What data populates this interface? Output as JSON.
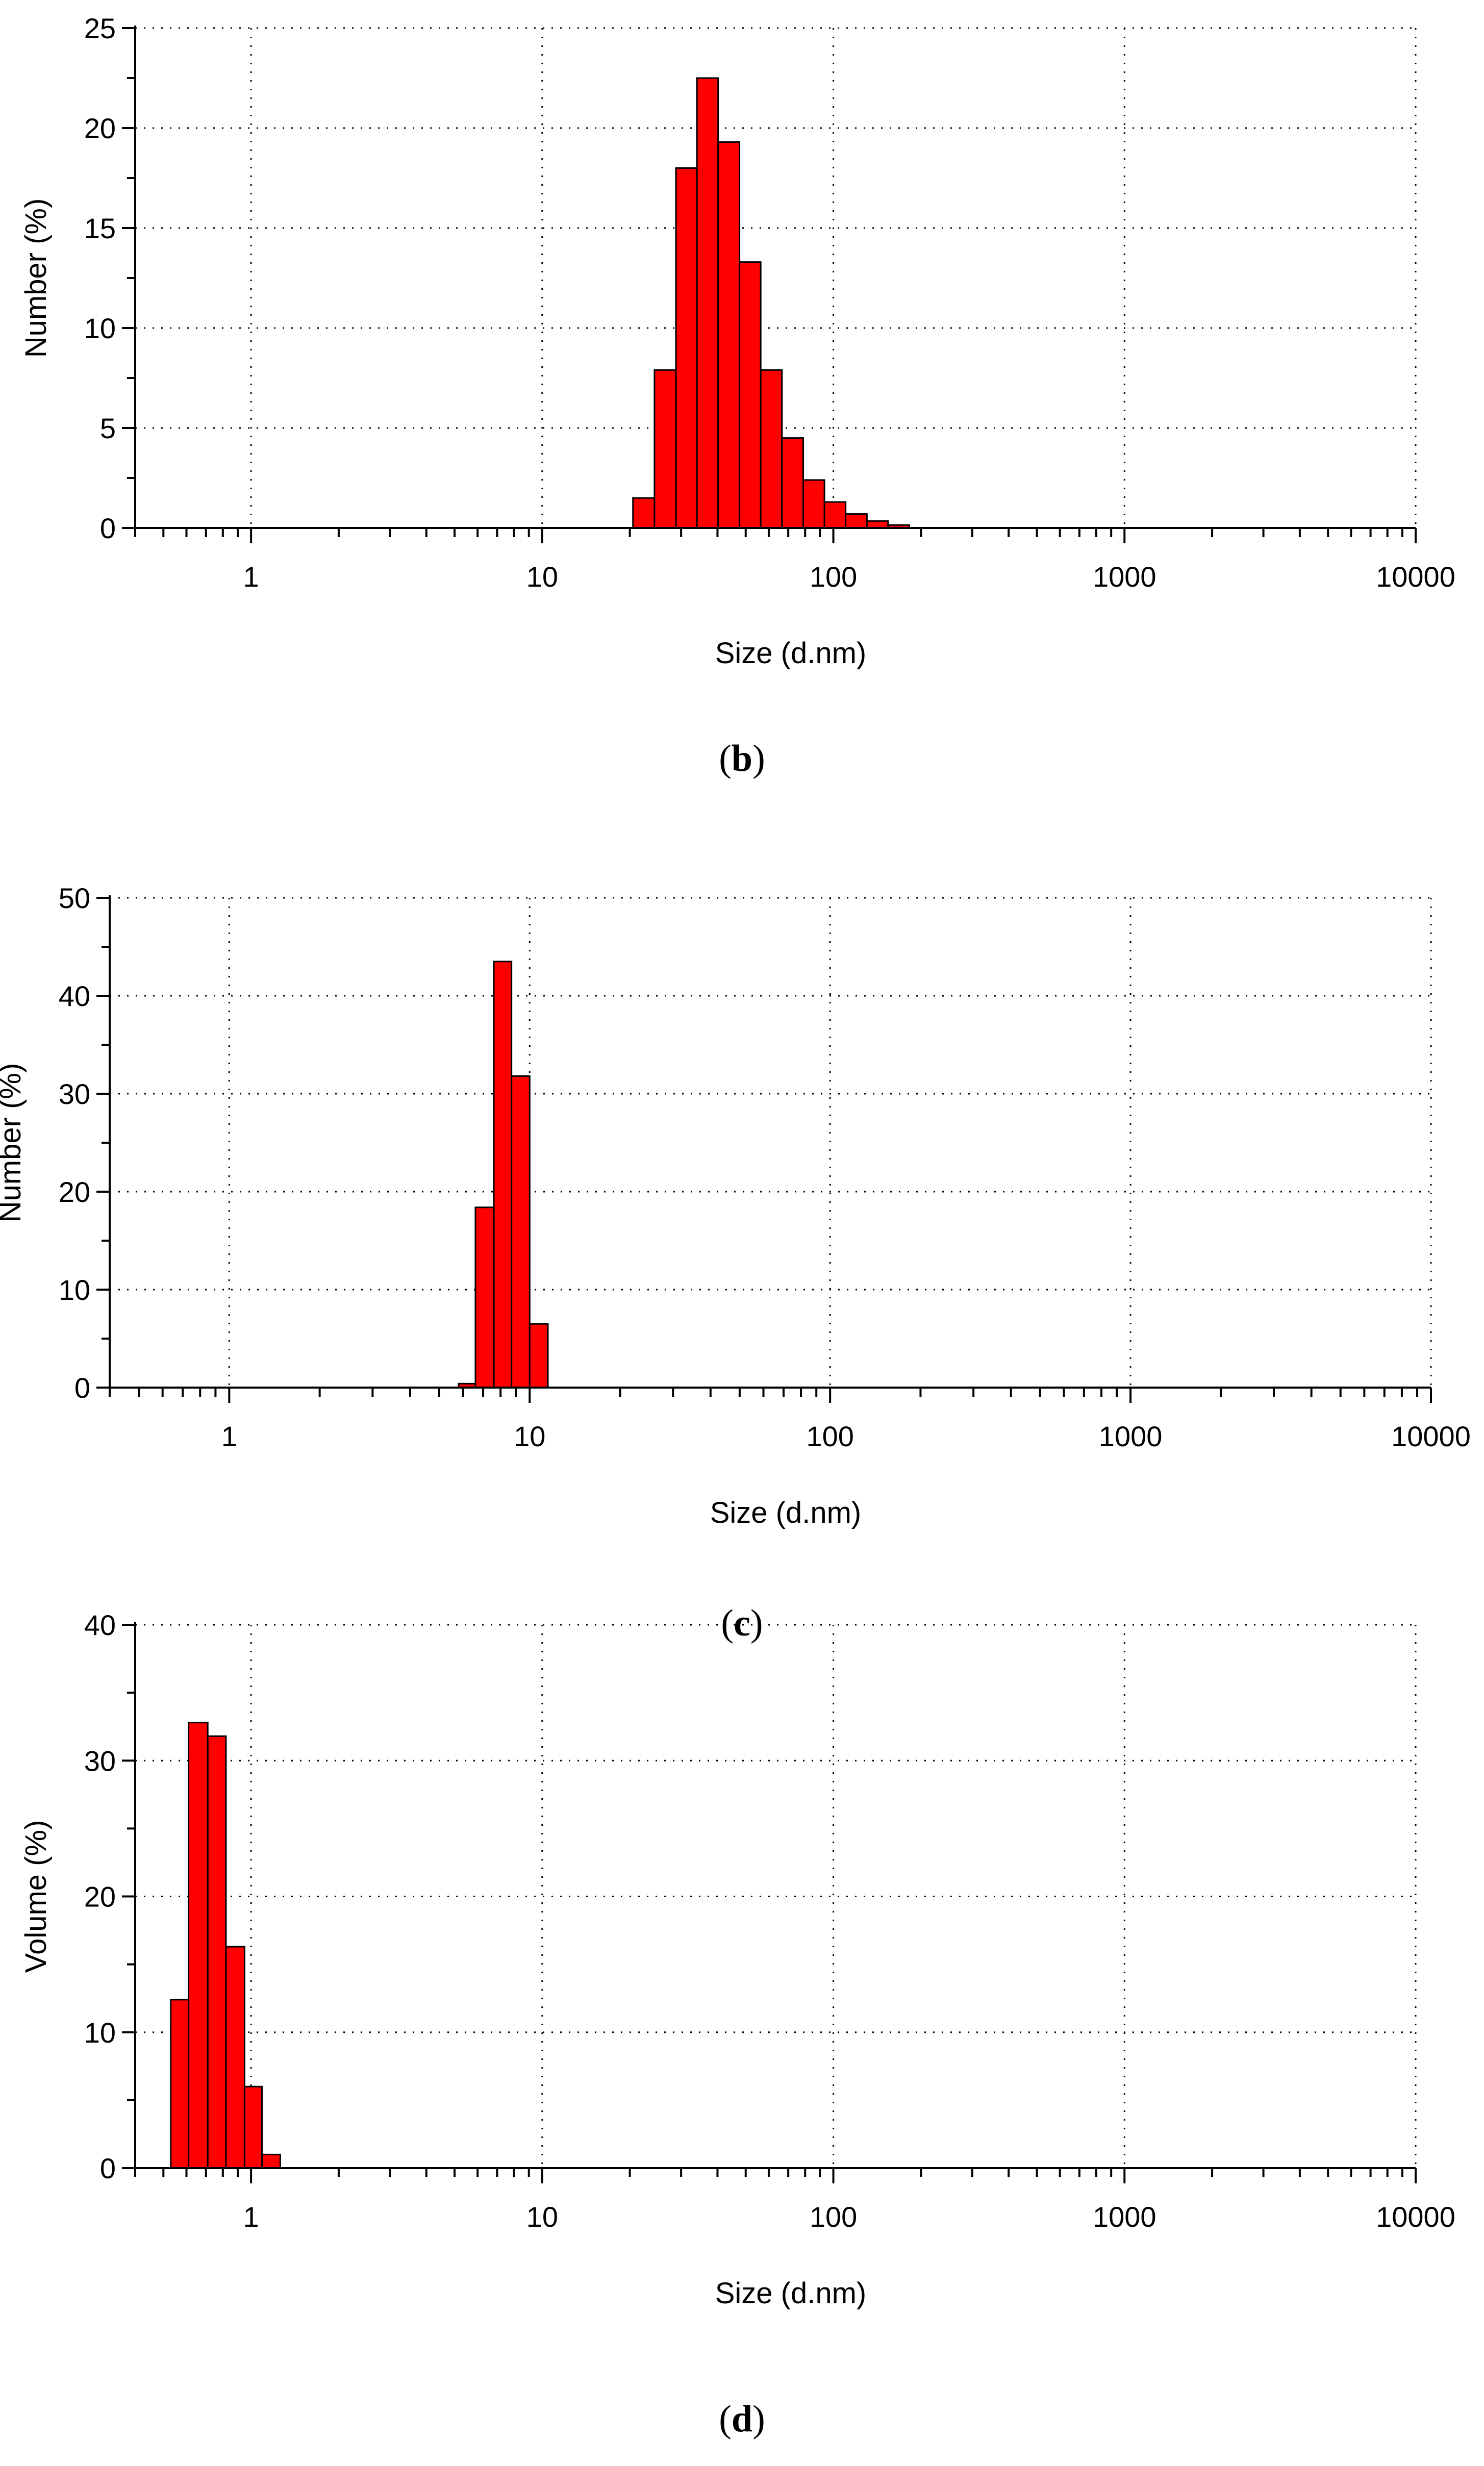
{
  "bar_color": "#ff0000",
  "chart_data": [
    {
      "type": "bar",
      "caption_letter": "b",
      "xlabel": "Size (d.nm)",
      "ylabel": "Number (%)",
      "x_scale": "log",
      "xlim": [
        0.4,
        10000
      ],
      "ylim": [
        0,
        25
      ],
      "x_ticks": [
        "1",
        "10",
        "100",
        "1000",
        "10000"
      ],
      "y_ticks": [
        "0",
        "5",
        "10",
        "15",
        "20",
        "25"
      ],
      "grid": true,
      "bins": [
        {
          "x0": 20.5,
          "x1": 24.3,
          "value": 1.5
        },
        {
          "x0": 24.3,
          "x1": 28.8,
          "value": 7.9
        },
        {
          "x0": 28.8,
          "x1": 34.0,
          "value": 18.0
        },
        {
          "x0": 34.0,
          "x1": 40.2,
          "value": 22.5
        },
        {
          "x0": 40.2,
          "x1": 47.6,
          "value": 19.3
        },
        {
          "x0": 47.6,
          "x1": 56.3,
          "value": 13.3
        },
        {
          "x0": 56.3,
          "x1": 66.6,
          "value": 7.9
        },
        {
          "x0": 66.6,
          "x1": 78.8,
          "value": 4.5
        },
        {
          "x0": 78.8,
          "x1": 93.2,
          "value": 2.4
        },
        {
          "x0": 93.2,
          "x1": 110.2,
          "value": 1.3
        },
        {
          "x0": 110.2,
          "x1": 130.4,
          "value": 0.7
        },
        {
          "x0": 130.4,
          "x1": 154.2,
          "value": 0.35
        },
        {
          "x0": 154.2,
          "x1": 182.4,
          "value": 0.15
        }
      ]
    },
    {
      "type": "bar",
      "caption_letter": "c",
      "xlabel": "Size (d.nm)",
      "ylabel": "Number (%)",
      "x_scale": "log",
      "xlim": [
        0.4,
        10000
      ],
      "ylim": [
        0,
        50
      ],
      "x_ticks": [
        "1",
        "10",
        "100",
        "1000",
        "10000"
      ],
      "y_ticks": [
        "0",
        "10",
        "20",
        "30",
        "40",
        "50"
      ],
      "grid": true,
      "bins": [
        {
          "x0": 5.8,
          "x1": 6.6,
          "value": 0.4
        },
        {
          "x0": 6.6,
          "x1": 7.6,
          "value": 18.4
        },
        {
          "x0": 7.6,
          "x1": 8.7,
          "value": 43.5
        },
        {
          "x0": 8.7,
          "x1": 10.0,
          "value": 31.8
        },
        {
          "x0": 10.0,
          "x1": 11.5,
          "value": 6.5
        }
      ]
    },
    {
      "type": "bar",
      "caption_letter": "d",
      "xlabel": "Size (d.nm)",
      "ylabel": "Volume (%)",
      "x_scale": "log",
      "xlim": [
        0.4,
        10000
      ],
      "ylim": [
        0,
        40
      ],
      "x_ticks": [
        "1",
        "10",
        "100",
        "1000",
        "10000"
      ],
      "y_ticks": [
        "0",
        "10",
        "20",
        "30",
        "40"
      ],
      "grid": true,
      "bins": [
        {
          "x0": 0.53,
          "x1": 0.61,
          "value": 12.4
        },
        {
          "x0": 0.61,
          "x1": 0.71,
          "value": 32.8
        },
        {
          "x0": 0.71,
          "x1": 0.82,
          "value": 31.8
        },
        {
          "x0": 0.82,
          "x1": 0.95,
          "value": 16.3
        },
        {
          "x0": 0.95,
          "x1": 1.09,
          "value": 6.0
        },
        {
          "x0": 1.09,
          "x1": 1.26,
          "value": 1.0
        }
      ]
    }
  ]
}
